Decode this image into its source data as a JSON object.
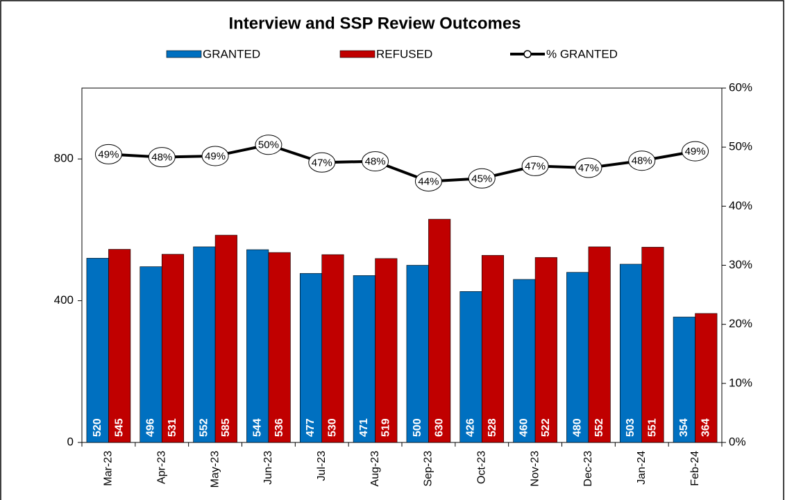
{
  "chart_data": {
    "type": "bar",
    "title": "Interview and SSP Review Outcomes",
    "categories": [
      "Mar-23",
      "Apr-23",
      "May-23",
      "Jun-23",
      "Jul-23",
      "Aug-23",
      "Sep-23",
      "Oct-23",
      "Nov-23",
      "Dec-23",
      "Jan-24",
      "Feb-24"
    ],
    "series": [
      {
        "name": "GRANTED",
        "type": "bar",
        "color": "#0070c0",
        "values": [
          520,
          496,
          552,
          544,
          477,
          471,
          500,
          426,
          460,
          480,
          503,
          354
        ]
      },
      {
        "name": "REFUSED",
        "type": "bar",
        "color": "#c00000",
        "values": [
          545,
          531,
          585,
          536,
          530,
          519,
          630,
          528,
          522,
          552,
          551,
          364
        ]
      },
      {
        "name": "% GRANTED",
        "type": "line",
        "axis": "y2",
        "color": "#000000",
        "values": [
          48.8,
          48.3,
          48.5,
          50.4,
          47.4,
          47.6,
          44.2,
          44.7,
          46.8,
          46.5,
          47.7,
          49.3
        ],
        "value_labels": [
          "49%",
          "48%",
          "49%",
          "50%",
          "47%",
          "48%",
          "44%",
          "45%",
          "47%",
          "47%",
          "48%",
          "49%"
        ]
      }
    ],
    "ylim": [
      0,
      1000
    ],
    "yticks": [
      0,
      400,
      800
    ],
    "y2lim": [
      0,
      60
    ],
    "y2ticks": [
      {
        "value": 0,
        "label": "0%"
      },
      {
        "value": 10,
        "label": "10%"
      },
      {
        "value": 20,
        "label": "20%"
      },
      {
        "value": 30,
        "label": "30%"
      },
      {
        "value": 40,
        "label": "40%"
      },
      {
        "value": 50,
        "label": "50%"
      },
      {
        "value": 60,
        "label": "60%"
      }
    ],
    "legend": "top"
  }
}
